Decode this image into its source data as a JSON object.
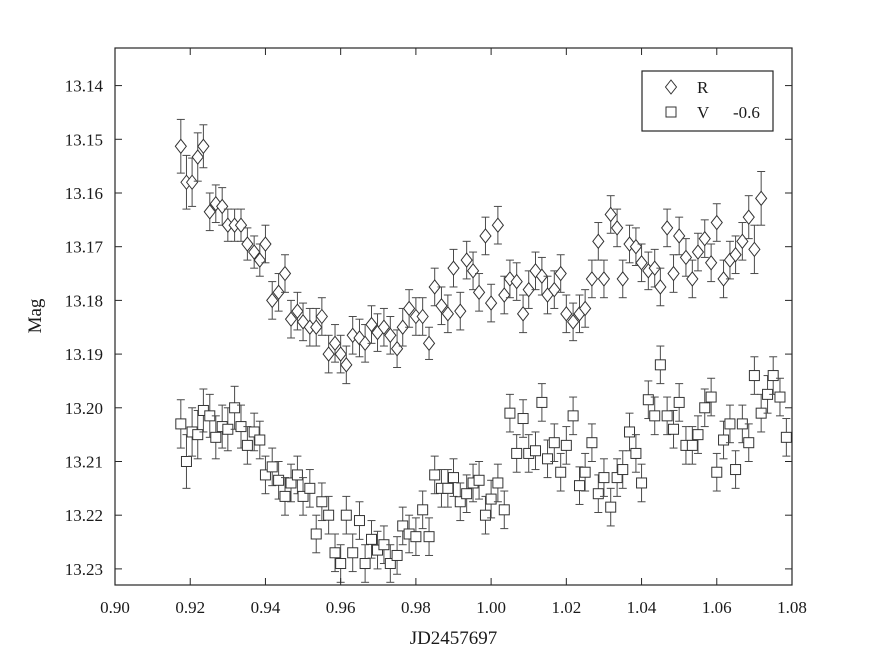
{
  "chart_data": {
    "type": "scatter",
    "title": "",
    "xlabel": "JD2457697",
    "ylabel": "Mag",
    "xlim": [
      0.9,
      1.08
    ],
    "ylim": [
      13.133,
      13.233
    ],
    "y_reversed": true,
    "grid": false,
    "legend_placement": "top-right",
    "x_ticks": [
      "0.90",
      "0.92",
      "0.94",
      "0.96",
      "0.98",
      "1.00",
      "1.02",
      "1.04",
      "1.06",
      "1.08"
    ],
    "y_ticks": [
      "13.14",
      "13.15",
      "13.16",
      "13.17",
      "13.18",
      "13.19",
      "13.20",
      "13.21",
      "13.22",
      "13.23"
    ],
    "series": [
      {
        "name": "R",
        "marker": "diamond",
        "legend_suffix": "",
        "color": "#333333",
        "points": [
          [
            0.9175,
            13.1513,
            0.005
          ],
          [
            0.919,
            13.158,
            0.005
          ],
          [
            0.9205,
            13.158,
            0.0045
          ],
          [
            0.922,
            13.1533,
            0.0045
          ],
          [
            0.9235,
            13.1513,
            0.004
          ],
          [
            0.9252,
            13.1635,
            0.0035
          ],
          [
            0.9268,
            13.162,
            0.0035
          ],
          [
            0.9285,
            13.1625,
            0.0035
          ],
          [
            0.93,
            13.166,
            0.003
          ],
          [
            0.9318,
            13.166,
            0.003
          ],
          [
            0.9335,
            13.166,
            0.003
          ],
          [
            0.9352,
            13.1695,
            0.003
          ],
          [
            0.937,
            13.171,
            0.003
          ],
          [
            0.9385,
            13.1725,
            0.003
          ],
          [
            0.94,
            13.1695,
            0.0035
          ],
          [
            0.9418,
            13.18,
            0.0035
          ],
          [
            0.9435,
            13.1785,
            0.0035
          ],
          [
            0.9452,
            13.175,
            0.0035
          ],
          [
            0.9468,
            13.1835,
            0.0035
          ],
          [
            0.9485,
            13.182,
            0.0035
          ],
          [
            0.95,
            13.184,
            0.0035
          ],
          [
            0.9518,
            13.185,
            0.0035
          ],
          [
            0.9535,
            13.185,
            0.0035
          ],
          [
            0.955,
            13.183,
            0.0035
          ],
          [
            0.9568,
            13.19,
            0.0035
          ],
          [
            0.9585,
            13.188,
            0.0035
          ],
          [
            0.96,
            13.19,
            0.0035
          ],
          [
            0.9615,
            13.192,
            0.0035
          ],
          [
            0.9632,
            13.1865,
            0.0035
          ],
          [
            0.965,
            13.187,
            0.0035
          ],
          [
            0.9665,
            13.188,
            0.0035
          ],
          [
            0.9682,
            13.1845,
            0.0035
          ],
          [
            0.9698,
            13.186,
            0.0035
          ],
          [
            0.9715,
            13.185,
            0.0035
          ],
          [
            0.9732,
            13.1865,
            0.0035
          ],
          [
            0.975,
            13.189,
            0.0035
          ],
          [
            0.9765,
            13.185,
            0.0035
          ],
          [
            0.9782,
            13.1815,
            0.0035
          ],
          [
            0.98,
            13.183,
            0.0035
          ],
          [
            0.9818,
            13.183,
            0.0035
          ],
          [
            0.9835,
            13.188,
            0.003
          ],
          [
            0.985,
            13.1775,
            0.0035
          ],
          [
            0.9868,
            13.181,
            0.0035
          ],
          [
            0.9885,
            13.1825,
            0.0035
          ],
          [
            0.99,
            13.174,
            0.0035
          ],
          [
            0.9918,
            13.182,
            0.0035
          ],
          [
            0.9935,
            13.1725,
            0.0035
          ],
          [
            0.9952,
            13.1745,
            0.0035
          ],
          [
            0.9968,
            13.1785,
            0.0035
          ],
          [
            0.9985,
            13.168,
            0.0035
          ],
          [
            1.0,
            13.1805,
            0.0035
          ],
          [
            1.0018,
            13.166,
            0.0035
          ],
          [
            1.0035,
            13.179,
            0.0035
          ],
          [
            1.005,
            13.176,
            0.0035
          ],
          [
            1.0068,
            13.1765,
            0.0035
          ],
          [
            1.0085,
            13.1825,
            0.0035
          ],
          [
            1.01,
            13.178,
            0.0035
          ],
          [
            1.0118,
            13.1745,
            0.0035
          ],
          [
            1.0135,
            13.1755,
            0.0035
          ],
          [
            1.015,
            13.179,
            0.0035
          ],
          [
            1.0168,
            13.178,
            0.0035
          ],
          [
            1.0185,
            13.175,
            0.0035
          ],
          [
            1.02,
            13.1825,
            0.0035
          ],
          [
            1.0218,
            13.184,
            0.0035
          ],
          [
            1.0235,
            13.1825,
            0.0035
          ],
          [
            1.025,
            13.1815,
            0.0035
          ],
          [
            1.0268,
            13.176,
            0.0035
          ],
          [
            1.0285,
            13.169,
            0.0035
          ],
          [
            1.03,
            13.176,
            0.0035
          ],
          [
            1.0318,
            13.164,
            0.0035
          ],
          [
            1.0335,
            13.1665,
            0.0035
          ],
          [
            1.035,
            13.176,
            0.0035
          ],
          [
            1.0368,
            13.1695,
            0.0035
          ],
          [
            1.0385,
            13.17,
            0.0035
          ],
          [
            1.04,
            13.173,
            0.0035
          ],
          [
            1.0418,
            13.1745,
            0.0035
          ],
          [
            1.0435,
            13.174,
            0.0035
          ],
          [
            1.045,
            13.1775,
            0.0035
          ],
          [
            1.0468,
            13.1665,
            0.0035
          ],
          [
            1.0485,
            13.175,
            0.0035
          ],
          [
            1.05,
            13.168,
            0.0035
          ],
          [
            1.0518,
            13.172,
            0.0035
          ],
          [
            1.0535,
            13.176,
            0.0035
          ],
          [
            1.055,
            13.171,
            0.0035
          ],
          [
            1.0568,
            13.1685,
            0.0035
          ],
          [
            1.0585,
            13.173,
            0.0035
          ],
          [
            1.06,
            13.1655,
            0.0035
          ],
          [
            1.0618,
            13.176,
            0.0035
          ],
          [
            1.0635,
            13.1725,
            0.0035
          ],
          [
            1.065,
            13.1715,
            0.0035
          ],
          [
            1.0668,
            13.169,
            0.0035
          ],
          [
            1.0685,
            13.1645,
            0.004
          ],
          [
            1.07,
            13.1705,
            0.0045
          ],
          [
            1.0718,
            13.161,
            0.005
          ]
        ]
      },
      {
        "name": "V",
        "marker": "square",
        "legend_suffix": "-0.6",
        "color": "#333333",
        "points": [
          [
            0.9175,
            13.203,
            0.0045
          ],
          [
            0.919,
            13.21,
            0.005
          ],
          [
            0.9205,
            13.2045,
            0.0045
          ],
          [
            0.922,
            13.205,
            0.0045
          ],
          [
            0.9235,
            13.2005,
            0.004
          ],
          [
            0.9252,
            13.2015,
            0.004
          ],
          [
            0.9268,
            13.2055,
            0.004
          ],
          [
            0.9285,
            13.2035,
            0.004
          ],
          [
            0.93,
            13.204,
            0.004
          ],
          [
            0.9318,
            13.2,
            0.004
          ],
          [
            0.9335,
            13.2035,
            0.004
          ],
          [
            0.9352,
            13.207,
            0.0035
          ],
          [
            0.937,
            13.2045,
            0.0035
          ],
          [
            0.9385,
            13.206,
            0.0035
          ],
          [
            0.94,
            13.2125,
            0.0035
          ],
          [
            0.9418,
            13.211,
            0.0035
          ],
          [
            0.9435,
            13.2135,
            0.0035
          ],
          [
            0.9452,
            13.2165,
            0.0035
          ],
          [
            0.9468,
            13.214,
            0.0035
          ],
          [
            0.9485,
            13.2125,
            0.0035
          ],
          [
            0.95,
            13.2165,
            0.0035
          ],
          [
            0.9518,
            13.215,
            0.0035
          ],
          [
            0.9535,
            13.2235,
            0.0035
          ],
          [
            0.955,
            13.2175,
            0.0035
          ],
          [
            0.9568,
            13.22,
            0.0035
          ],
          [
            0.9585,
            13.227,
            0.0035
          ],
          [
            0.96,
            13.229,
            0.0035
          ],
          [
            0.9615,
            13.22,
            0.0035
          ],
          [
            0.9632,
            13.227,
            0.0035
          ],
          [
            0.965,
            13.221,
            0.0035
          ],
          [
            0.9665,
            13.229,
            0.0035
          ],
          [
            0.9682,
            13.2245,
            0.0035
          ],
          [
            0.9698,
            13.2265,
            0.0035
          ],
          [
            0.9715,
            13.2255,
            0.0035
          ],
          [
            0.9732,
            13.229,
            0.0035
          ],
          [
            0.975,
            13.2275,
            0.0035
          ],
          [
            0.9765,
            13.222,
            0.0035
          ],
          [
            0.9782,
            13.2235,
            0.0035
          ],
          [
            0.98,
            13.224,
            0.0035
          ],
          [
            0.9818,
            13.219,
            0.0035
          ],
          [
            0.9835,
            13.224,
            0.0035
          ],
          [
            0.985,
            13.2125,
            0.0035
          ],
          [
            0.9868,
            13.215,
            0.0035
          ],
          [
            0.9885,
            13.215,
            0.0035
          ],
          [
            0.99,
            13.213,
            0.0035
          ],
          [
            0.9918,
            13.2175,
            0.0035
          ],
          [
            0.9935,
            13.216,
            0.0035
          ],
          [
            0.9952,
            13.214,
            0.0035
          ],
          [
            0.9968,
            13.2135,
            0.0035
          ],
          [
            0.9985,
            13.22,
            0.0035
          ],
          [
            1.0,
            13.217,
            0.0035
          ],
          [
            1.0018,
            13.214,
            0.0035
          ],
          [
            1.0035,
            13.219,
            0.0035
          ],
          [
            1.005,
            13.201,
            0.0035
          ],
          [
            1.0068,
            13.2085,
            0.0035
          ],
          [
            1.0085,
            13.202,
            0.0035
          ],
          [
            1.01,
            13.2085,
            0.0035
          ],
          [
            1.0118,
            13.208,
            0.0035
          ],
          [
            1.0135,
            13.199,
            0.0035
          ],
          [
            1.015,
            13.2095,
            0.0035
          ],
          [
            1.0168,
            13.2065,
            0.0035
          ],
          [
            1.0185,
            13.212,
            0.0035
          ],
          [
            1.02,
            13.207,
            0.0035
          ],
          [
            1.0218,
            13.2015,
            0.0035
          ],
          [
            1.0235,
            13.2145,
            0.0035
          ],
          [
            1.025,
            13.212,
            0.0035
          ],
          [
            1.0268,
            13.2065,
            0.0035
          ],
          [
            1.0285,
            13.216,
            0.0035
          ],
          [
            1.03,
            13.213,
            0.0035
          ],
          [
            1.0318,
            13.2185,
            0.0035
          ],
          [
            1.0335,
            13.213,
            0.0035
          ],
          [
            1.035,
            13.2115,
            0.0035
          ],
          [
            1.0368,
            13.2045,
            0.0035
          ],
          [
            1.0385,
            13.2085,
            0.0035
          ],
          [
            1.04,
            13.214,
            0.0035
          ],
          [
            1.0418,
            13.1985,
            0.0035
          ],
          [
            1.0435,
            13.2015,
            0.0035
          ],
          [
            1.045,
            13.192,
            0.0035
          ],
          [
            1.0468,
            13.2015,
            0.0035
          ],
          [
            1.0485,
            13.204,
            0.0035
          ],
          [
            1.05,
            13.199,
            0.0035
          ],
          [
            1.0518,
            13.207,
            0.0035
          ],
          [
            1.0535,
            13.207,
            0.0035
          ],
          [
            1.055,
            13.205,
            0.0035
          ],
          [
            1.0568,
            13.2,
            0.0035
          ],
          [
            1.0585,
            13.198,
            0.0035
          ],
          [
            1.06,
            13.212,
            0.0035
          ],
          [
            1.0618,
            13.206,
            0.0035
          ],
          [
            1.0635,
            13.203,
            0.0035
          ],
          [
            1.065,
            13.2115,
            0.0035
          ],
          [
            1.0668,
            13.203,
            0.0035
          ],
          [
            1.0685,
            13.2065,
            0.0035
          ],
          [
            1.07,
            13.194,
            0.0035
          ],
          [
            1.0718,
            13.201,
            0.0035
          ],
          [
            1.0735,
            13.1975,
            0.0035
          ],
          [
            1.075,
            13.194,
            0.0035
          ],
          [
            1.0768,
            13.198,
            0.0035
          ],
          [
            1.0785,
            13.2055,
            0.0035
          ]
        ]
      }
    ]
  }
}
